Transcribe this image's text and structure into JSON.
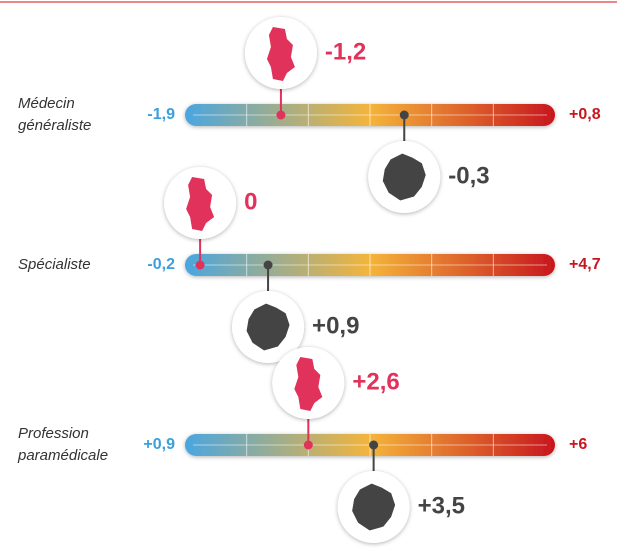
{
  "chart_data": {
    "type": "range",
    "categories": [
      "Médecin généraliste",
      "Spécialiste",
      "Profession paramédicale"
    ],
    "min": [
      -1.9,
      -0.2,
      0.9
    ],
    "min_labels": [
      "-1,9",
      "-0,2",
      "+0,9"
    ],
    "max": [
      0.8,
      4.7,
      6
    ],
    "max_labels": [
      "+0,8",
      "+4,7",
      "+6"
    ],
    "series": [
      {
        "color": "#e0325a",
        "values": [
          -1.2,
          0,
          2.6
        ],
        "value_labels": [
          "-1,2",
          "0",
          "+2,6"
        ]
      },
      {
        "color": "#444444",
        "values": [
          -0.3,
          0.9,
          3.5
        ],
        "value_labels": [
          "-0,3",
          "+0,9",
          "+3,5"
        ]
      }
    ]
  }
}
